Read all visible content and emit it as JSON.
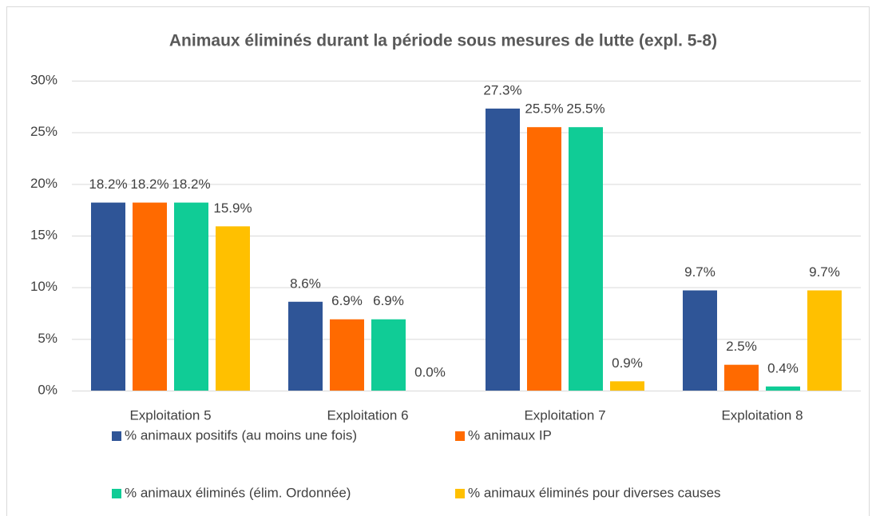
{
  "chart_data": {
    "type": "bar",
    "title": "Animaux éliminés durant la période sous mesures de lutte (expl. 5-8)",
    "categories": [
      "Exploitation 5",
      "Exploitation 6",
      "Exploitation 7",
      "Exploitation 8"
    ],
    "series": [
      {
        "name": "% animaux positifs (au moins une fois)",
        "color": "#2f5597",
        "values": [
          18.2,
          8.6,
          27.3,
          9.7
        ],
        "value_labels": [
          "18.2%",
          "8.6%",
          "27.3%",
          "9.7%"
        ]
      },
      {
        "name": "% animaux IP",
        "color": "#ff6a00",
        "values": [
          18.2,
          6.9,
          25.5,
          2.5
        ],
        "value_labels": [
          "18.2%",
          "6.9%",
          "25.5%",
          "2.5%"
        ]
      },
      {
        "name": "% animaux éliminés (élim. Ordonnée)",
        "color": "#10cc96",
        "values": [
          18.2,
          6.9,
          25.5,
          0.4
        ],
        "value_labels": [
          "18.2%",
          "6.9%",
          "25.5%",
          "0.4%"
        ]
      },
      {
        "name": "% animaux éliminés pour diverses causes",
        "color": "#ffc000",
        "values": [
          15.9,
          0.0,
          0.9,
          9.7
        ],
        "value_labels": [
          "15.9%",
          "0.0%",
          "0.9%",
          "9.7%"
        ]
      }
    ],
    "ylim": [
      0,
      30
    ],
    "yticks": [
      {
        "value": 0,
        "label": "0%"
      },
      {
        "value": 5,
        "label": "5%"
      },
      {
        "value": 10,
        "label": "10%"
      },
      {
        "value": 15,
        "label": "15%"
      },
      {
        "value": 20,
        "label": "20%"
      },
      {
        "value": 25,
        "label": "25%"
      },
      {
        "value": 30,
        "label": "30%"
      }
    ],
    "grid": true,
    "legend": "bottom"
  }
}
